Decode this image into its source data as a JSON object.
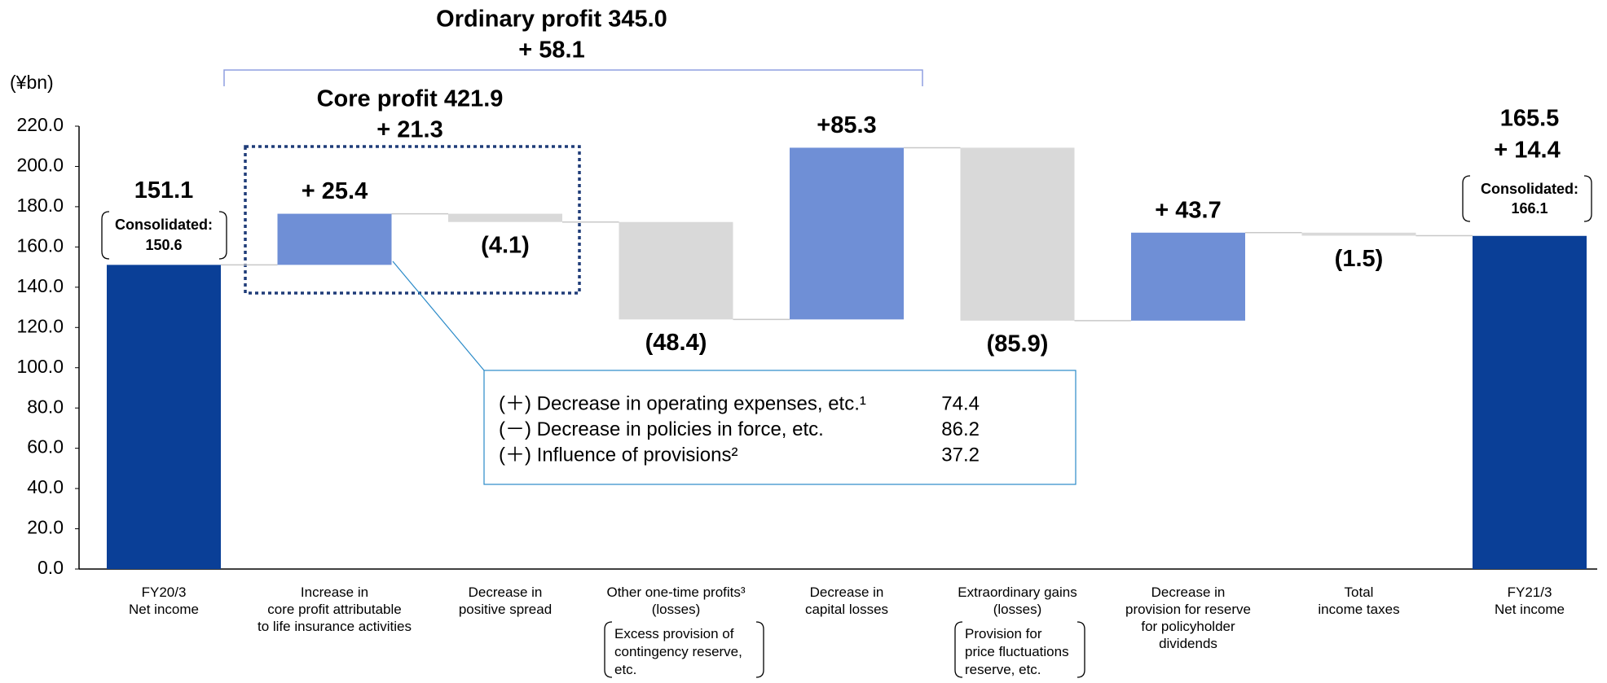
{
  "chart_data": {
    "type": "waterfall",
    "unit_label": "(¥bn)",
    "categories": [
      "FY20/3\nNet income",
      "Increase in\ncore profit attributable\nto life insurance activities",
      "Decrease in\npositive spread",
      "Other one-time profits³\n(losses)",
      "Decrease in\ncapital losses",
      "Extraordinary gains\n(losses)",
      "Decrease in\nprovision for reserve\nfor policyholder\ndividends",
      "Total\nincome taxes",
      "FY21/3\nNet income"
    ],
    "values": [
      151.1,
      25.4,
      -4.1,
      -48.4,
      85.3,
      -85.9,
      43.7,
      -1.5,
      165.5
    ],
    "value_labels": [
      "151.1",
      "+ 25.4",
      "(4.1)",
      "(48.4)",
      "+85.3",
      "(85.9)",
      "+ 43.7",
      "(1.5)",
      "165.5"
    ],
    "is_total": [
      true,
      false,
      false,
      false,
      false,
      false,
      false,
      false,
      true
    ],
    "total_color": "#0a3f97",
    "increase_color": "#6f8fd6",
    "decrease_color": "#d9d9d9",
    "ylim": [
      0,
      220
    ],
    "yticks": [
      {
        "value": 0,
        "label": "0.0"
      },
      {
        "value": 20,
        "label": "20.0"
      },
      {
        "value": 40,
        "label": "40.0"
      },
      {
        "value": 60,
        "label": "60.0"
      },
      {
        "value": 80,
        "label": "80.0"
      },
      {
        "value": 100,
        "label": "100.0"
      },
      {
        "value": 120,
        "label": "120.0"
      },
      {
        "value": 140,
        "label": "140.0"
      },
      {
        "value": 160,
        "label": "160.0"
      },
      {
        "value": 180,
        "label": "180.0"
      },
      {
        "value": 200,
        "label": "200.0"
      },
      {
        "value": 220,
        "label": "220.0"
      }
    ],
    "last_change": "+ 14.4",
    "consolidated": [
      {
        "label": "Consolidated:",
        "value": 150.6
      },
      {
        "label": "Consolidated:",
        "value": 166.1
      }
    ],
    "ordinary_profit": {
      "label": "Ordinary profit  345.0",
      "change": "+ 58.1"
    },
    "core_profit": {
      "label": "Core profit  421.9",
      "change": "+ 21.3"
    },
    "breakdown": [
      {
        "text": "(＋) Decrease in operating expenses, etc.¹",
        "value": 74.4
      },
      {
        "text": "(－) Decrease in policies in force, etc.",
        "value": 86.2
      },
      {
        "text": "(＋) Influence of provisions²",
        "value": 37.2
      }
    ],
    "notes": [
      "Excess provision of\ncontingency reserve,\netc.",
      "Provision for\nprice fluctuations\nreserve, etc."
    ]
  }
}
